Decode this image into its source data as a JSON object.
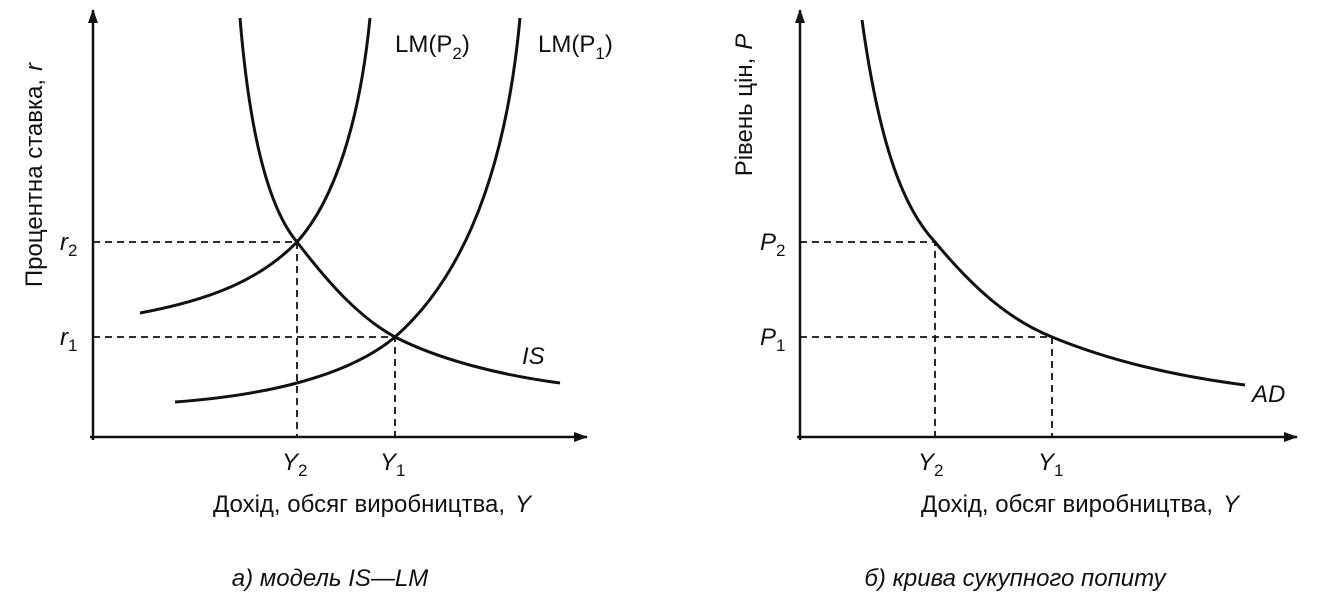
{
  "panel_a": {
    "y_axis_label": {
      "text": "Процентна ставка,",
      "var": "r"
    },
    "x_axis_label": {
      "text": "Дохід, обсяг виробництва,",
      "var": "Y"
    },
    "curves": [
      {
        "name": "LM(P",
        "sub": "2",
        "end": ")"
      },
      {
        "name": "LM(P",
        "sub": "1",
        "end": ")"
      },
      {
        "name": "IS"
      }
    ],
    "y_levels": [
      {
        "var": "r",
        "sub": "2"
      },
      {
        "var": "r",
        "sub": "1"
      }
    ],
    "x_levels": [
      {
        "var": "Y",
        "sub": "2"
      },
      {
        "var": "Y",
        "sub": "1"
      }
    ],
    "caption": "а) модель IS—LM"
  },
  "panel_b": {
    "y_axis_label": {
      "text": "Рівень цін,",
      "var": "P"
    },
    "x_axis_label": {
      "text": "Дохід, обсяг виробництва,",
      "var": "Y"
    },
    "curves": [
      {
        "name": "AD"
      }
    ],
    "y_levels": [
      {
        "var": "P",
        "sub": "2"
      },
      {
        "var": "P",
        "sub": "1"
      }
    ],
    "x_levels": [
      {
        "var": "Y",
        "sub": "2"
      },
      {
        "var": "Y",
        "sub": "1"
      }
    ],
    "caption": "б) крива сукупного попиту"
  }
}
